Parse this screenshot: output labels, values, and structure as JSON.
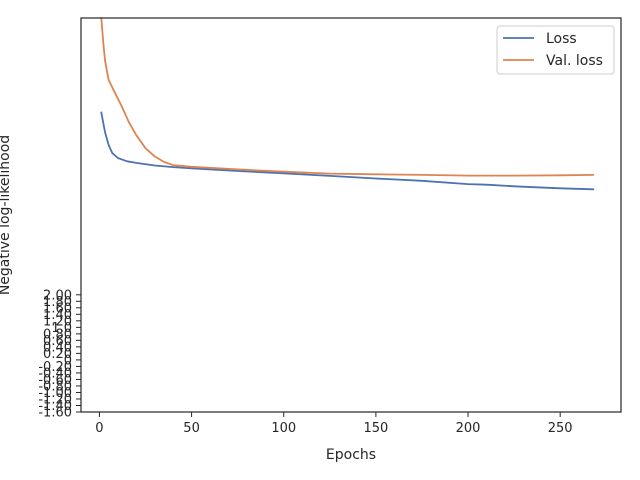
{
  "chart_data": {
    "type": "line",
    "title": "",
    "xlabel": "Epochs",
    "ylabel": "Negative log-likelihood",
    "xlim": [
      -10,
      283
    ],
    "ylim": [
      -1.6,
      10.5
    ],
    "x_ticks": [
      0,
      50,
      100,
      150,
      200,
      250
    ],
    "y_ticks": [
      -1.6,
      -1.4,
      -1.2,
      -1.0,
      -0.8,
      -0.6,
      -0.4,
      -0.2,
      0,
      0.2,
      0.4,
      0.6,
      0.8,
      1.0,
      1.2,
      1.4,
      1.6,
      1.8,
      2.0
    ],
    "y_tick_labels": [
      "-1.60",
      "-1.40",
      "-1.20",
      "-1.00",
      "-0.80",
      "-0.60",
      "-0.40",
      "-0.20",
      "0",
      "0.20",
      "0.40",
      "0.60",
      "0.80",
      "1.0",
      "1.20",
      "1.40",
      "1.60",
      "1.80",
      "2.00"
    ],
    "legend_position": "top-right",
    "grid": false,
    "series": [
      {
        "name": "Loss",
        "color": "#4c72b0",
        "x": [
          1,
          3,
          5,
          7,
          10,
          15,
          20,
          30,
          40,
          50,
          75,
          100,
          125,
          150,
          175,
          200,
          210,
          225,
          250,
          268
        ],
        "y": [
          7.6,
          7.0,
          6.6,
          6.35,
          6.2,
          6.1,
          6.05,
          5.97,
          5.92,
          5.88,
          5.8,
          5.73,
          5.65,
          5.57,
          5.5,
          5.4,
          5.38,
          5.33,
          5.27,
          5.24
        ]
      },
      {
        "name": "Val. loss",
        "color": "#dd8452",
        "x": [
          1,
          2,
          3,
          5,
          8,
          12,
          16,
          20,
          25,
          30,
          35,
          40,
          50,
          75,
          100,
          125,
          150,
          175,
          200,
          210,
          225,
          250,
          268
        ],
        "y": [
          10.5,
          9.8,
          9.2,
          8.6,
          8.25,
          7.8,
          7.3,
          6.9,
          6.5,
          6.25,
          6.08,
          5.98,
          5.93,
          5.85,
          5.78,
          5.72,
          5.7,
          5.68,
          5.66,
          5.66,
          5.66,
          5.67,
          5.68
        ]
      }
    ]
  }
}
